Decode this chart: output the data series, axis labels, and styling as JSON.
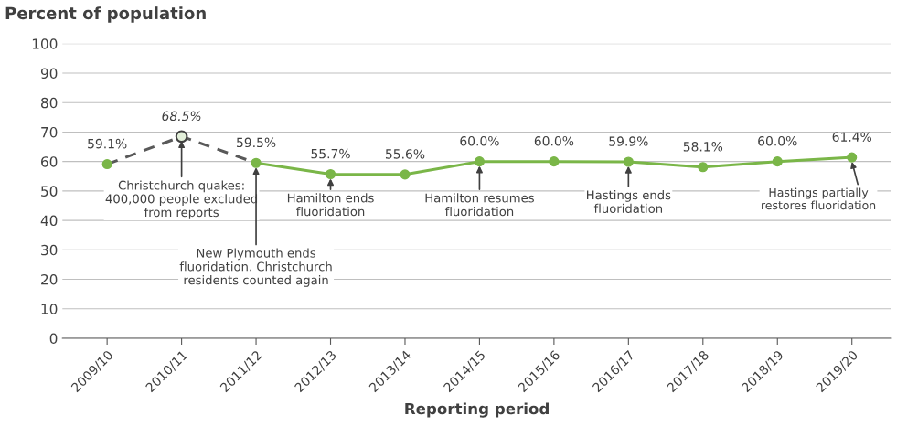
{
  "chart_data": {
    "type": "line",
    "ylabel": "Percent of population",
    "xlabel": "Reporting period",
    "categories": [
      "2009/10",
      "2010/11",
      "2011/12",
      "2012/13",
      "2013/14",
      "2014/15",
      "2015/16",
      "2016/17",
      "2017/18",
      "2018/19",
      "2019/20"
    ],
    "series": [
      {
        "color": "#595959",
        "line_style": "dashed",
        "marker": "none",
        "values": [
          59.1,
          68.5,
          59.5,
          null,
          null,
          null,
          null,
          null,
          null,
          null,
          null
        ]
      },
      {
        "type": "scatter",
        "color": "#e2efd9",
        "marker": "circle",
        "values": [
          null,
          68.5,
          null,
          null,
          null,
          null,
          null,
          null,
          null,
          null,
          null
        ],
        "value_labels": [
          null,
          "68.5%",
          null,
          null,
          null,
          null,
          null,
          null,
          null,
          null,
          null
        ]
      },
      {
        "color": "#7ab648",
        "line_style": "solid",
        "marker": "circle",
        "values": [
          59.1,
          null,
          59.5,
          55.7,
          55.6,
          60.0,
          60.0,
          59.9,
          58.1,
          60.0,
          61.4
        ],
        "value_labels": [
          "59.1%",
          null,
          "59.5%",
          "55.7%",
          "55.6%",
          "60.0%",
          "60.0%",
          "59.9%",
          "58.1%",
          "60.0%",
          "61.4%"
        ]
      }
    ],
    "ylim": [
      0,
      100
    ],
    "yticks": [
      0,
      10,
      20,
      30,
      40,
      50,
      60,
      70,
      80,
      90,
      100
    ],
    "grid": "y",
    "annotations": [
      {
        "text": "Christchurch quakes:\n400,000 people excluded\nfrom reports",
        "x": "2010/11",
        "y": 68.5
      },
      {
        "text": "New Plymouth ends\nfluoridation. Christchurch\nresidents counted again",
        "x": "2011/12",
        "y": 59.5
      },
      {
        "text": "Hamilton ends\nfluoridation",
        "x": "2012/13",
        "y": 55.7
      },
      {
        "text": "Hamilton resumes\nfluoridation",
        "x": "2014/15",
        "y": 60.0
      },
      {
        "text": "Hastings ends\nfluoridation",
        "x": "2016/17",
        "y": 59.9
      },
      {
        "text": "Hastings partially\nrestores fluoridation",
        "x": "2019/20",
        "y": 61.4
      }
    ]
  }
}
